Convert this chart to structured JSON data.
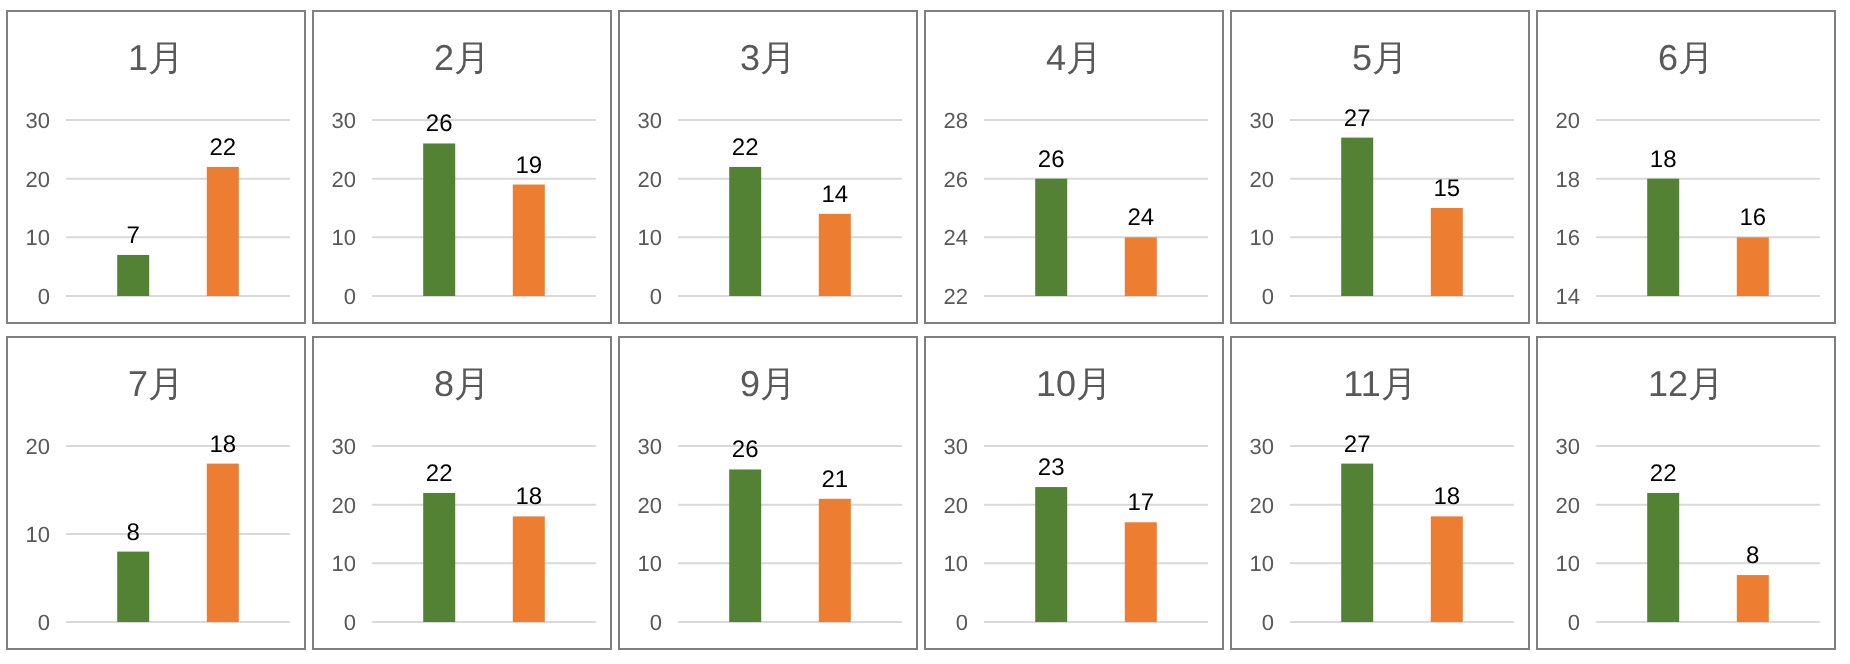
{
  "chart_data": [
    {
      "type": "bar",
      "title": "1月",
      "categories": [
        null,
        null
      ],
      "values": [
        7,
        22
      ],
      "colors": [
        "#548235",
        "#ed7d31"
      ],
      "ylim": [
        0,
        30
      ],
      "yticks": [
        0,
        10,
        20,
        30
      ],
      "grid": "y",
      "data_labels": true
    },
    {
      "type": "bar",
      "title": "2月",
      "categories": [
        null,
        null
      ],
      "values": [
        26,
        19
      ],
      "colors": [
        "#548235",
        "#ed7d31"
      ],
      "ylim": [
        0,
        30
      ],
      "yticks": [
        0,
        10,
        20,
        30
      ],
      "grid": "y",
      "data_labels": true
    },
    {
      "type": "bar",
      "title": "3月",
      "categories": [
        null,
        null
      ],
      "values": [
        22,
        14
      ],
      "colors": [
        "#548235",
        "#ed7d31"
      ],
      "ylim": [
        0,
        30
      ],
      "yticks": [
        0,
        10,
        20,
        30
      ],
      "grid": "y",
      "data_labels": true
    },
    {
      "type": "bar",
      "title": "4月",
      "categories": [
        null,
        null
      ],
      "values": [
        26,
        24
      ],
      "colors": [
        "#548235",
        "#ed7d31"
      ],
      "ylim": [
        22,
        28
      ],
      "yticks": [
        22,
        24,
        26,
        28
      ],
      "grid": "y",
      "data_labels": true
    },
    {
      "type": "bar",
      "title": "5月",
      "categories": [
        null,
        null
      ],
      "values": [
        27,
        15
      ],
      "colors": [
        "#548235",
        "#ed7d31"
      ],
      "ylim": [
        0,
        30
      ],
      "yticks": [
        0,
        10,
        20,
        30
      ],
      "grid": "y",
      "data_labels": true
    },
    {
      "type": "bar",
      "title": "6月",
      "categories": [
        null,
        null
      ],
      "values": [
        18,
        16
      ],
      "colors": [
        "#548235",
        "#ed7d31"
      ],
      "ylim": [
        14,
        20
      ],
      "yticks": [
        14,
        16,
        18,
        20
      ],
      "grid": "y",
      "data_labels": true
    },
    {
      "type": "bar",
      "title": "7月",
      "categories": [
        null,
        null
      ],
      "values": [
        8,
        18
      ],
      "colors": [
        "#548235",
        "#ed7d31"
      ],
      "ylim": [
        0,
        20
      ],
      "yticks": [
        0,
        10,
        20
      ],
      "grid": "y",
      "data_labels": true
    },
    {
      "type": "bar",
      "title": "8月",
      "categories": [
        null,
        null
      ],
      "values": [
        22,
        18
      ],
      "colors": [
        "#548235",
        "#ed7d31"
      ],
      "ylim": [
        0,
        30
      ],
      "yticks": [
        0,
        10,
        20,
        30
      ],
      "grid": "y",
      "data_labels": true
    },
    {
      "type": "bar",
      "title": "9月",
      "categories": [
        null,
        null
      ],
      "values": [
        26,
        21
      ],
      "colors": [
        "#548235",
        "#ed7d31"
      ],
      "ylim": [
        0,
        30
      ],
      "yticks": [
        0,
        10,
        20,
        30
      ],
      "grid": "y",
      "data_labels": true
    },
    {
      "type": "bar",
      "title": "10月",
      "categories": [
        null,
        null
      ],
      "values": [
        23,
        17
      ],
      "colors": [
        "#548235",
        "#ed7d31"
      ],
      "ylim": [
        0,
        30
      ],
      "yticks": [
        0,
        10,
        20,
        30
      ],
      "grid": "y",
      "data_labels": true
    },
    {
      "type": "bar",
      "title": "11月",
      "categories": [
        null,
        null
      ],
      "values": [
        27,
        18
      ],
      "colors": [
        "#548235",
        "#ed7d31"
      ],
      "ylim": [
        0,
        30
      ],
      "yticks": [
        0,
        10,
        20,
        30
      ],
      "grid": "y",
      "data_labels": true
    },
    {
      "type": "bar",
      "title": "12月",
      "categories": [
        null,
        null
      ],
      "values": [
        22,
        8
      ],
      "colors": [
        "#548235",
        "#ed7d31"
      ],
      "ylim": [
        0,
        30
      ],
      "yticks": [
        0,
        10,
        20,
        30
      ],
      "grid": "y",
      "data_labels": true
    }
  ]
}
